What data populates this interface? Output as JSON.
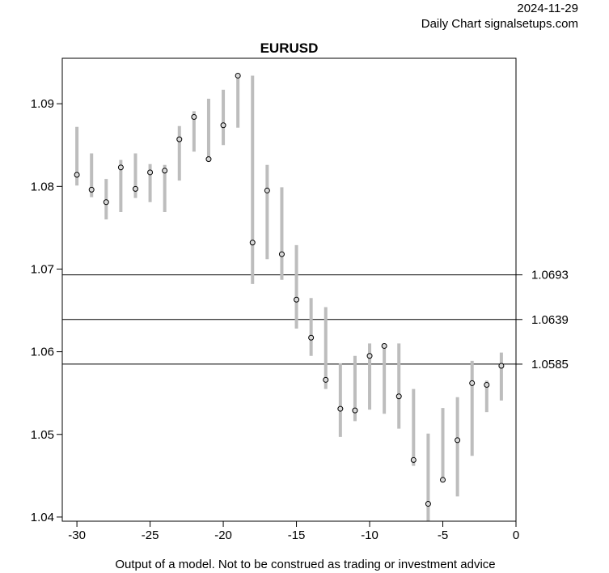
{
  "header": {
    "date": "2024-11-29",
    "subtitle": "Daily Chart signalsetups.com"
  },
  "footer": {
    "disclaimer": "Output of a model. Not to be construed as trading or investment advice"
  },
  "chart_data": {
    "type": "range-dot",
    "title": "EURUSD",
    "xlim": [
      -31,
      0
    ],
    "ylim": [
      1.0395,
      1.0955
    ],
    "x_ticks": [
      -30,
      -25,
      -20,
      -15,
      -10,
      -5,
      0
    ],
    "y_ticks": [
      1.04,
      1.05,
      1.06,
      1.07,
      1.08,
      1.09
    ],
    "grid": false,
    "colors": {
      "range": "#bdbdbd",
      "level": "#000000",
      "point_fill": "#d9d9d9"
    },
    "levels": [
      {
        "value": 1.0693,
        "label": "1.0693"
      },
      {
        "value": 1.0639,
        "label": "1.0639"
      },
      {
        "value": 1.0585,
        "label": "1.0585"
      }
    ],
    "points": [
      {
        "x": -30,
        "low": 1.0801,
        "high": 1.0872,
        "close": 1.0814
      },
      {
        "x": -29,
        "low": 1.0787,
        "high": 1.084,
        "close": 1.0796
      },
      {
        "x": -28,
        "low": 1.076,
        "high": 1.0809,
        "close": 1.0781
      },
      {
        "x": -27,
        "low": 1.0769,
        "high": 1.0832,
        "close": 1.0823
      },
      {
        "x": -26,
        "low": 1.0786,
        "high": 1.084,
        "close": 1.0797
      },
      {
        "x": -25,
        "low": 1.0781,
        "high": 1.0827,
        "close": 1.0817
      },
      {
        "x": -24,
        "low": 1.0769,
        "high": 1.0826,
        "close": 1.0819
      },
      {
        "x": -23,
        "low": 1.0807,
        "high": 1.0873,
        "close": 1.0857
      },
      {
        "x": -22,
        "low": 1.0842,
        "high": 1.0891,
        "close": 1.0884
      },
      {
        "x": -21,
        "low": 1.0832,
        "high": 1.0906,
        "close": 1.0833
      },
      {
        "x": -20,
        "low": 1.085,
        "high": 1.0917,
        "close": 1.0874
      },
      {
        "x": -19,
        "low": 1.0871,
        "high": 1.0936,
        "close": 1.0934
      },
      {
        "x": -18,
        "low": 1.0682,
        "high": 1.0934,
        "close": 1.0732
      },
      {
        "x": -17,
        "low": 1.0712,
        "high": 1.0826,
        "close": 1.0795
      },
      {
        "x": -16,
        "low": 1.0687,
        "high": 1.0799,
        "close": 1.0718
      },
      {
        "x": -15,
        "low": 1.0628,
        "high": 1.0729,
        "close": 1.0663
      },
      {
        "x": -14,
        "low": 1.0595,
        "high": 1.0665,
        "close": 1.0617
      },
      {
        "x": -13,
        "low": 1.0555,
        "high": 1.0654,
        "close": 1.0566
      },
      {
        "x": -12,
        "low": 1.0497,
        "high": 1.0586,
        "close": 1.0531
      },
      {
        "x": -11,
        "low": 1.0516,
        "high": 1.0595,
        "close": 1.0529
      },
      {
        "x": -10,
        "low": 1.053,
        "high": 1.061,
        "close": 1.0595
      },
      {
        "x": -9,
        "low": 1.0525,
        "high": 1.061,
        "close": 1.0607
      },
      {
        "x": -8,
        "low": 1.0507,
        "high": 1.061,
        "close": 1.0546
      },
      {
        "x": -7,
        "low": 1.0462,
        "high": 1.0555,
        "close": 1.0469
      },
      {
        "x": -6,
        "low": 1.0395,
        "high": 1.0501,
        "close": 1.0416
      },
      {
        "x": -5,
        "low": 1.0444,
        "high": 1.0532,
        "close": 1.0445
      },
      {
        "x": -4,
        "low": 1.0425,
        "high": 1.0545,
        "close": 1.0493
      },
      {
        "x": -3,
        "low": 1.0474,
        "high": 1.0589,
        "close": 1.0562
      },
      {
        "x": -2,
        "low": 1.0527,
        "high": 1.0565,
        "close": 1.056
      },
      {
        "x": -1,
        "low": 1.0541,
        "high": 1.0599,
        "close": 1.0583
      }
    ]
  }
}
